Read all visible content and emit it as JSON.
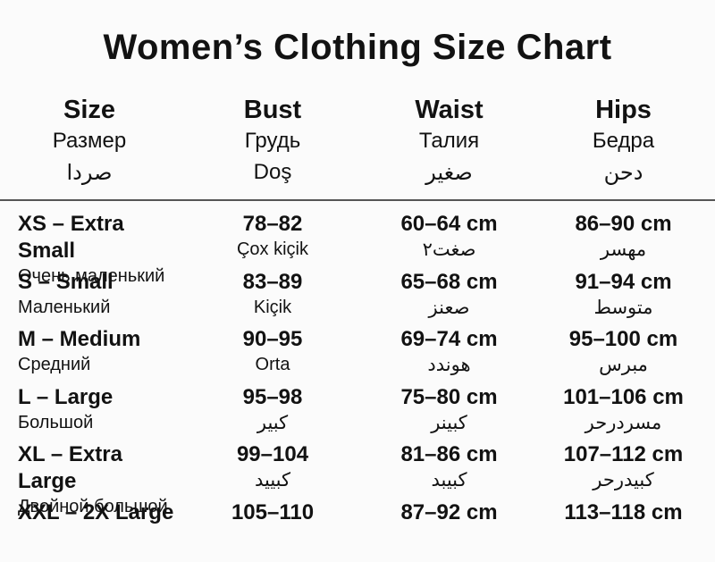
{
  "title": "Women’s Clothing Size Chart",
  "colors": {
    "background": "#fbfbfb",
    "text": "#121212",
    "divider": "#565656"
  },
  "table": {
    "columns": [
      {
        "en": "Size",
        "ru": "Размер",
        "l3": "صردا"
      },
      {
        "en": "Bust",
        "ru": "Грудь",
        "l3": "Doş"
      },
      {
        "en": "Waist",
        "ru": "Талия",
        "l3": "صغير"
      },
      {
        "en": "Hips",
        "ru": "Бедра",
        "l3": "دحن"
      }
    ],
    "rows": [
      {
        "size": "XS – Extra Small",
        "size_sub": "Очень маленький",
        "bust": "78–82",
        "bust_sub": "Çox kiçik",
        "waist": "60–64 cm",
        "waist_sub": "صغت٢",
        "hips": "86–90 cm",
        "hips_sub": "مهسر"
      },
      {
        "size": "S – Small",
        "size_sub": "Маленький",
        "bust": "83–89",
        "bust_sub": "Kiçik",
        "waist": "65–68 cm",
        "waist_sub": "صعنز",
        "hips": "91–94 cm",
        "hips_sub": "متوسط"
      },
      {
        "size": "M – Medium",
        "size_sub": "Средний",
        "bust": "90–95",
        "bust_sub": "Orta",
        "waist": "69–74 cm",
        "waist_sub": "هوندد",
        "hips": "95–100 cm",
        "hips_sub": "مبرس"
      },
      {
        "size": "L – Large",
        "size_sub": "Большой",
        "bust": "95–98",
        "bust_sub": "كبير",
        "waist": "75–80 cm",
        "waist_sub": "كبينر",
        "hips": "101–106 cm",
        "hips_sub": "مسردرحر"
      },
      {
        "size": "XL – Extra Large",
        "size_sub": "Двойной большой",
        "bust": "99–104",
        "bust_sub": "كبييد",
        "waist": "81–86 cm",
        "waist_sub": "كبيبد",
        "hips": "107–112 cm",
        "hips_sub": "كبيدرحر"
      },
      {
        "size": "XXL – 2X Large",
        "bust": "105–110",
        "waist": "87–92 cm",
        "hips": "113–118 cm"
      }
    ]
  }
}
